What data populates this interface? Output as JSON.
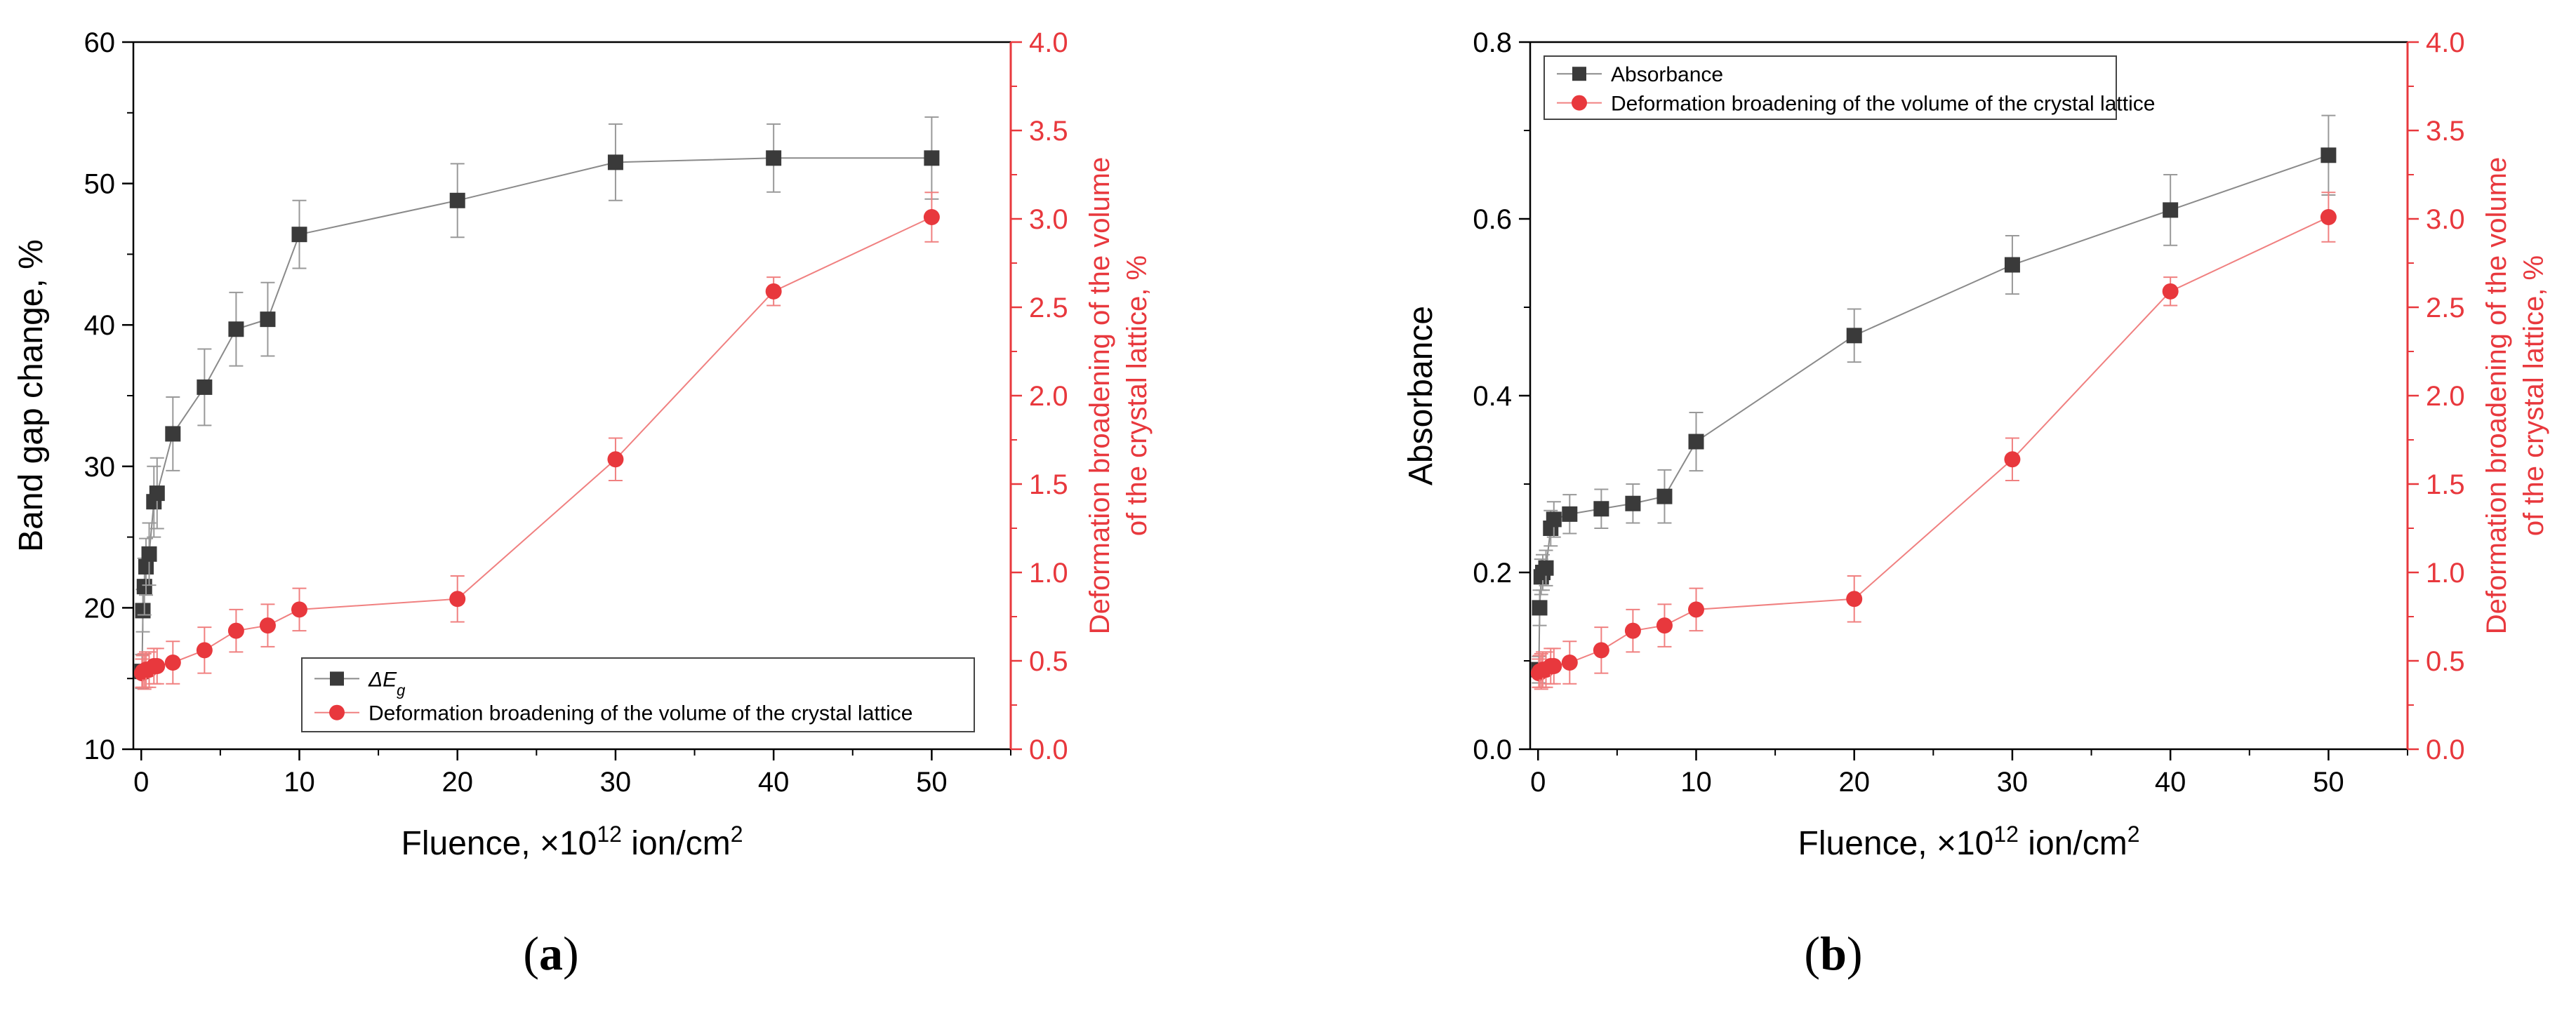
{
  "colors": {
    "black_series": "#3a3a3a",
    "black_line": "#8a8a8a",
    "red_series": "#e8383d",
    "red_line": "#f08080",
    "right_axis": "#e8383d"
  },
  "chart_data": [
    {
      "type": "line",
      "panel_label": "a",
      "xlabel": "Fluence, ×10",
      "xlabel_sup": "12",
      "xlabel_tail": " ion/cm",
      "xlabel_sup2": "2",
      "xlim": [
        -0.5,
        55
      ],
      "xticks": [
        0,
        10,
        20,
        30,
        40,
        50
      ],
      "left_axis": {
        "label": "Band gap change, %",
        "ylim": [
          10,
          60
        ],
        "ticks": [
          10,
          20,
          30,
          40,
          50,
          60
        ],
        "tick_labels": [
          "10",
          "20",
          "30",
          "40",
          "50",
          "60"
        ]
      },
      "right_axis": {
        "label_line1": "Deformation broadening of the volume",
        "label_line2": "of the crystal lattice, %",
        "ylim": [
          0,
          4
        ],
        "ticks": [
          0,
          0.5,
          1,
          1.5,
          2,
          2.5,
          3,
          3.5,
          4
        ],
        "tick_labels": [
          "0.0",
          "0.5",
          "1.0",
          "1.5",
          "2.0",
          "2.5",
          "3.0",
          "3.5",
          "4.0"
        ]
      },
      "legend": {
        "position": "bottom-right",
        "series1_label": "ΔE",
        "series1_sub": "g",
        "series2_label": "Deformation broadening of the volume of the crystal lattice"
      },
      "series": [
        {
          "name": "ΔEg",
          "axis": "left",
          "marker": "square",
          "x": [
            0.05,
            0.1,
            0.2,
            0.3,
            0.5,
            0.8,
            1,
            2,
            4,
            6,
            8,
            10,
            20,
            30,
            40,
            50
          ],
          "y": [
            15.5,
            19.8,
            21.5,
            22.9,
            23.8,
            27.5,
            28.1,
            32.3,
            35.6,
            39.7,
            40.4,
            46.4,
            48.8,
            51.5,
            51.8,
            51.8
          ],
          "err": [
            1.2,
            1.5,
            2.0,
            2.0,
            2.2,
            2.5,
            2.5,
            2.6,
            2.7,
            2.6,
            2.6,
            2.4,
            2.6,
            2.7,
            2.4,
            2.9
          ]
        },
        {
          "name": "Deformation broadening of the volume of the crystal lattice",
          "axis": "right",
          "marker": "circle",
          "x": [
            0.05,
            0.1,
            0.2,
            0.3,
            0.5,
            0.8,
            1,
            2,
            4,
            6,
            8,
            10,
            20,
            30,
            40,
            50
          ],
          "y": [
            0.43,
            0.44,
            0.44,
            0.45,
            0.45,
            0.47,
            0.47,
            0.49,
            0.56,
            0.67,
            0.7,
            0.79,
            0.85,
            1.64,
            2.59,
            3.01
          ],
          "err": [
            0.08,
            0.09,
            0.1,
            0.1,
            0.1,
            0.1,
            0.1,
            0.12,
            0.13,
            0.12,
            0.12,
            0.12,
            0.13,
            0.12,
            0.08,
            0.14
          ]
        }
      ]
    },
    {
      "type": "line",
      "panel_label": "b",
      "xlabel": "Fluence, ×10",
      "xlabel_sup": "12",
      "xlabel_tail": " ion/cm",
      "xlabel_sup2": "2",
      "xlim": [
        -0.5,
        55
      ],
      "xticks": [
        0,
        10,
        20,
        30,
        40,
        50
      ],
      "left_axis": {
        "label": "Absorbance",
        "ylim": [
          0,
          0.8
        ],
        "ticks": [
          0,
          0.2,
          0.4,
          0.6,
          0.8
        ],
        "tick_labels": [
          "0.0",
          "0.2",
          "0.4",
          "0.6",
          "0.8"
        ]
      },
      "right_axis": {
        "label_line1": "Deformation broadening of the volume",
        "label_line2": "of the crystal lattice, %",
        "ylim": [
          0,
          4
        ],
        "ticks": [
          0,
          0.5,
          1,
          1.5,
          2,
          2.5,
          3,
          3.5,
          4
        ],
        "tick_labels": [
          "0.0",
          "0.5",
          "1.0",
          "1.5",
          "2.0",
          "2.5",
          "3.0",
          "3.5",
          "4.0"
        ]
      },
      "legend": {
        "position": "top-left",
        "series1_label": "Absorbance",
        "series1_sub": "",
        "series2_label": "Deformation broadening of the volume of the crystal lattice"
      },
      "series": [
        {
          "name": "Absorbance",
          "axis": "left",
          "marker": "square",
          "x": [
            0.05,
            0.1,
            0.2,
            0.3,
            0.5,
            0.8,
            1,
            2,
            4,
            6,
            8,
            10,
            20,
            30,
            40,
            50
          ],
          "y": [
            0.09,
            0.16,
            0.195,
            0.2,
            0.205,
            0.25,
            0.26,
            0.266,
            0.272,
            0.278,
            0.286,
            0.348,
            0.468,
            0.548,
            0.61,
            0.672
          ],
          "err": [
            0.015,
            0.02,
            0.02,
            0.02,
            0.02,
            0.02,
            0.02,
            0.022,
            0.022,
            0.022,
            0.03,
            0.033,
            0.03,
            0.033,
            0.04,
            0.045
          ]
        },
        {
          "name": "Deformation broadening of the volume of the crystal lattice",
          "axis": "right",
          "marker": "circle",
          "x": [
            0.05,
            0.1,
            0.2,
            0.3,
            0.5,
            0.8,
            1,
            2,
            4,
            6,
            8,
            10,
            20,
            30,
            40,
            50
          ],
          "y": [
            0.43,
            0.44,
            0.44,
            0.45,
            0.45,
            0.47,
            0.47,
            0.49,
            0.56,
            0.67,
            0.7,
            0.79,
            0.85,
            1.64,
            2.59,
            3.01
          ],
          "err": [
            0.08,
            0.09,
            0.1,
            0.1,
            0.1,
            0.1,
            0.1,
            0.12,
            0.13,
            0.12,
            0.12,
            0.12,
            0.13,
            0.12,
            0.08,
            0.14
          ]
        }
      ]
    }
  ]
}
